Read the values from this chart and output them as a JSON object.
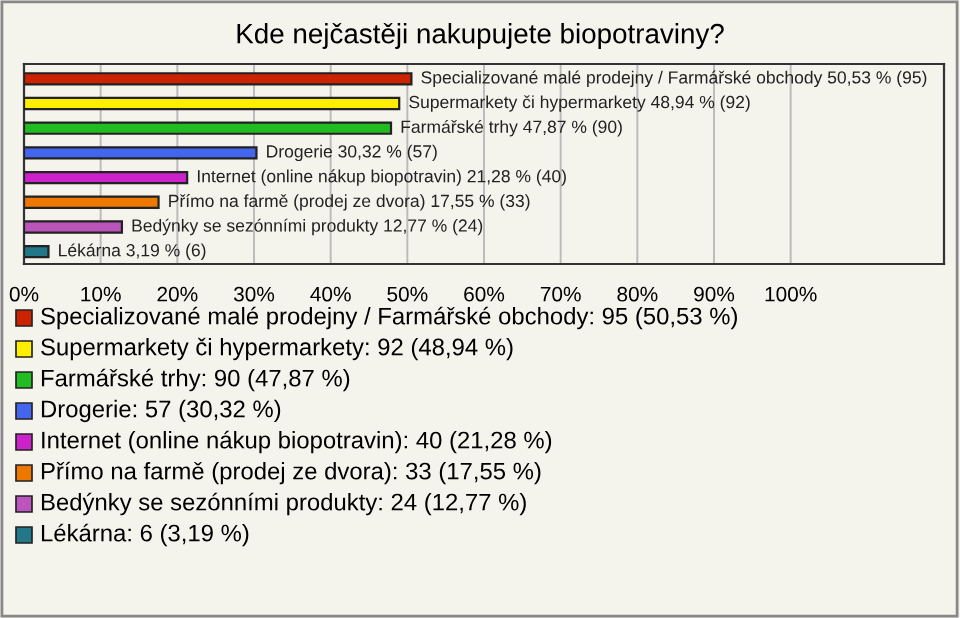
{
  "chart_data": {
    "type": "bar",
    "orientation": "horizontal",
    "title": "Kde nejčastěji nakupujete biopotraviny?",
    "categories": [
      "Specializované malé prodejny / Farmářské obchody",
      "Supermarkety či hypermarkety",
      "Farmářské trhy",
      "Drogerie",
      "Internet (online nákup biopotravin)",
      "Přímo na farmě (prodej ze dvora)",
      "Bedýnky se sezónními produkty",
      "Lékárna"
    ],
    "values": [
      50.53,
      48.94,
      47.87,
      30.32,
      21.28,
      17.55,
      12.77,
      3.19
    ],
    "colors": [
      "#cc2200",
      "#ffee00",
      "#22bb22",
      "#4466ee",
      "#cc22cc",
      "#ee7700",
      "#bb55bb",
      "#227788"
    ],
    "value_labels": [
      "50,53 % (95)",
      "48,94 % (92)",
      "47,87 % (90)",
      "30,32 % (57)",
      "21,28 % (40)",
      "17,55 % (33)",
      "12,77 % (24)",
      "3,19 % (6)"
    ],
    "annotations": [
      "Specializované malé prodejny / Farmářské obchody: 95 (50,53 %)",
      "Supermarkety či hypermarkety: 92 (48,94 %)",
      "Farmářské trhy: 90 (47,87 %)",
      "Drogerie: 57 (30,32 %)",
      "Internet (online nákup biopotravin): 40 (21,28 %)",
      "Přímo na farmě (prodej ze dvora): 33 (17,55 %)",
      "Bedýnky se sezónními produkty: 24 (12,77 %)",
      "Lékárna: 6 (3,19 %)"
    ],
    "xlim": [
      0,
      120
    ],
    "xticks": [
      {
        "value": 0,
        "label": "0%"
      },
      {
        "value": 10,
        "label": "10%"
      },
      {
        "value": 20,
        "label": "20%"
      },
      {
        "value": 30,
        "label": "30%"
      },
      {
        "value": 40,
        "label": "40%"
      },
      {
        "value": 50,
        "label": "50%"
      },
      {
        "value": 60,
        "label": "60%"
      },
      {
        "value": 70,
        "label": "70%"
      },
      {
        "value": 80,
        "label": "80%"
      },
      {
        "value": 90,
        "label": "90%"
      },
      {
        "value": 100,
        "label": "100%"
      }
    ],
    "grid": "x"
  }
}
